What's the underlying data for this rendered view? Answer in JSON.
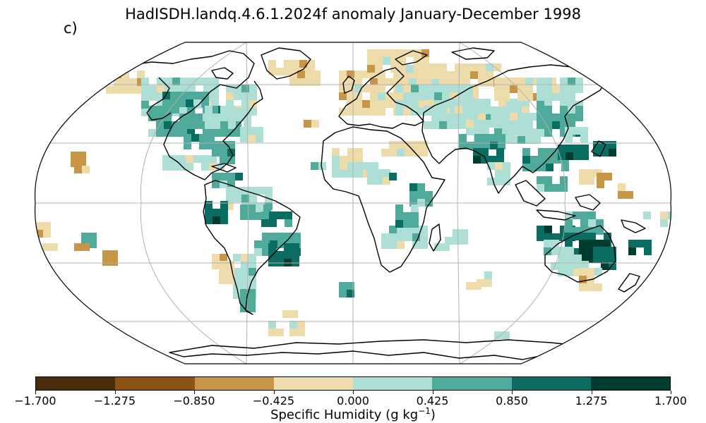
{
  "title": "HadISDH.landq.4.6.1.2024f anomaly January-December 1998",
  "panel_label": "c)",
  "colorbar": {
    "label_main": "Specific Humidity (g kg",
    "label_exp": "−1",
    "label_end": ")",
    "ticks": [
      "−1.700",
      "−1.275",
      "−0.850",
      "−0.425",
      "0.000",
      "0.425",
      "0.850",
      "1.275",
      "1.700"
    ],
    "colors": [
      "#4a2e0b",
      "#8c5317",
      "#c89446",
      "#eedbaa",
      "#aedfd7",
      "#4faa9c",
      "#0b6d62",
      "#013c30"
    ]
  },
  "map": {
    "projection": "robinson",
    "ocean_color": "#ffffff",
    "grid_color": "#b0b0b0",
    "coast_color": "#000000"
  }
}
